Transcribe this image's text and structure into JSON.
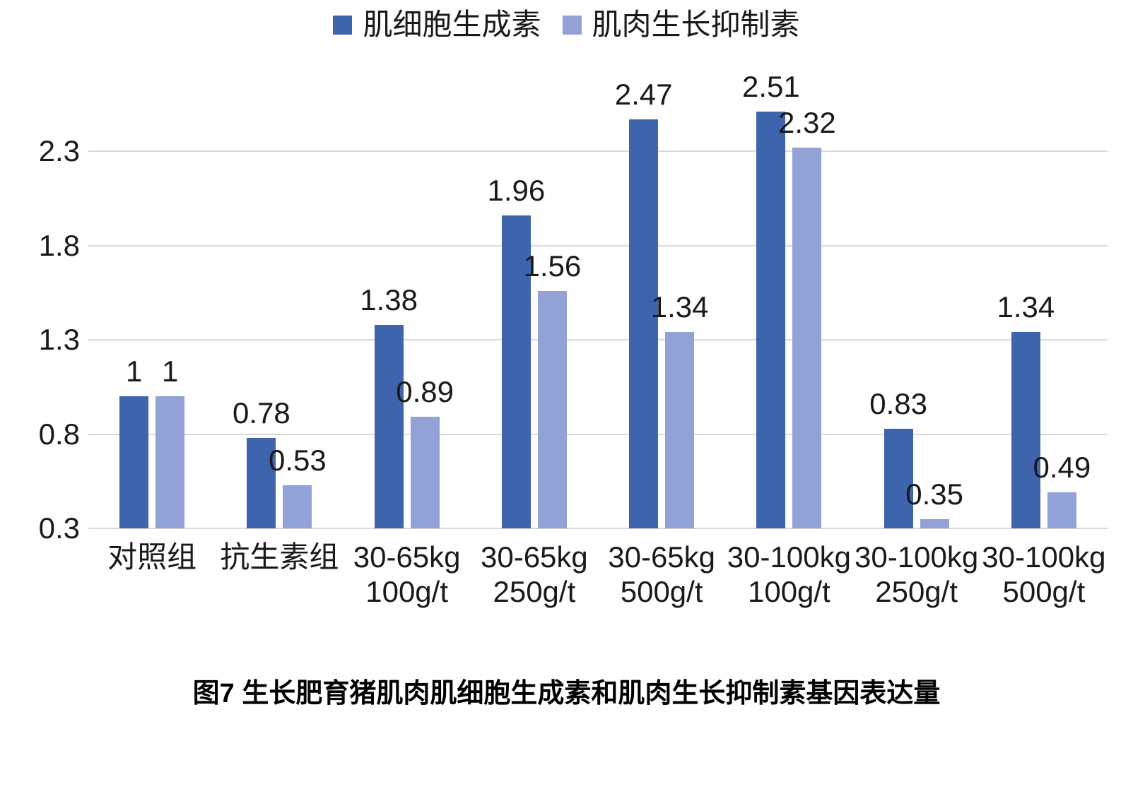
{
  "caption": "图7 生长肥育猪肌肉肌细胞生成素和肌肉生长抑制素基因表达量",
  "colors": {
    "series1": "#3D64AD",
    "series2": "#92A1D6",
    "gridline": "#D9D9D9",
    "text": "#1A1A1A"
  },
  "chart_data": {
    "type": "bar",
    "title": "",
    "xlabel": "",
    "ylabel": "",
    "categories": [
      "对照组",
      "抗生素组",
      "30-65kg\n100g/t",
      "30-65kg\n250g/t",
      "30-65kg\n500g/t",
      "30-100kg\n100g/t",
      "30-100kg\n250g/t",
      "30-100kg\n500g/t"
    ],
    "series": [
      {
        "name": "肌细胞生成素",
        "color": "#3D64AD",
        "values": [
          1,
          0.78,
          1.38,
          1.96,
          2.47,
          2.51,
          0.83,
          1.34
        ],
        "labels": [
          "1",
          "0.78",
          "1.38",
          "1.96",
          "2.47",
          "2.51",
          "0.83",
          "1.34"
        ]
      },
      {
        "name": "肌肉生长抑制素",
        "color": "#92A1D6",
        "values": [
          1,
          0.53,
          0.89,
          1.56,
          1.34,
          2.32,
          0.35,
          0.49
        ],
        "labels": [
          "1",
          "0.53",
          "0.89",
          "1.56",
          "1.34",
          "2.32",
          "0.35",
          "0.49"
        ]
      }
    ],
    "y_axis": {
      "min": 0.3,
      "max": 2.3,
      "tick_step": 0.5,
      "ticks": [
        "0.3",
        "0.8",
        "1.3",
        "1.8",
        "2.3"
      ],
      "tick_values": [
        0.3,
        0.8,
        1.3,
        1.8,
        2.3
      ]
    },
    "legend_position": "top",
    "gridlines": true,
    "data_labels": "outside-end"
  }
}
